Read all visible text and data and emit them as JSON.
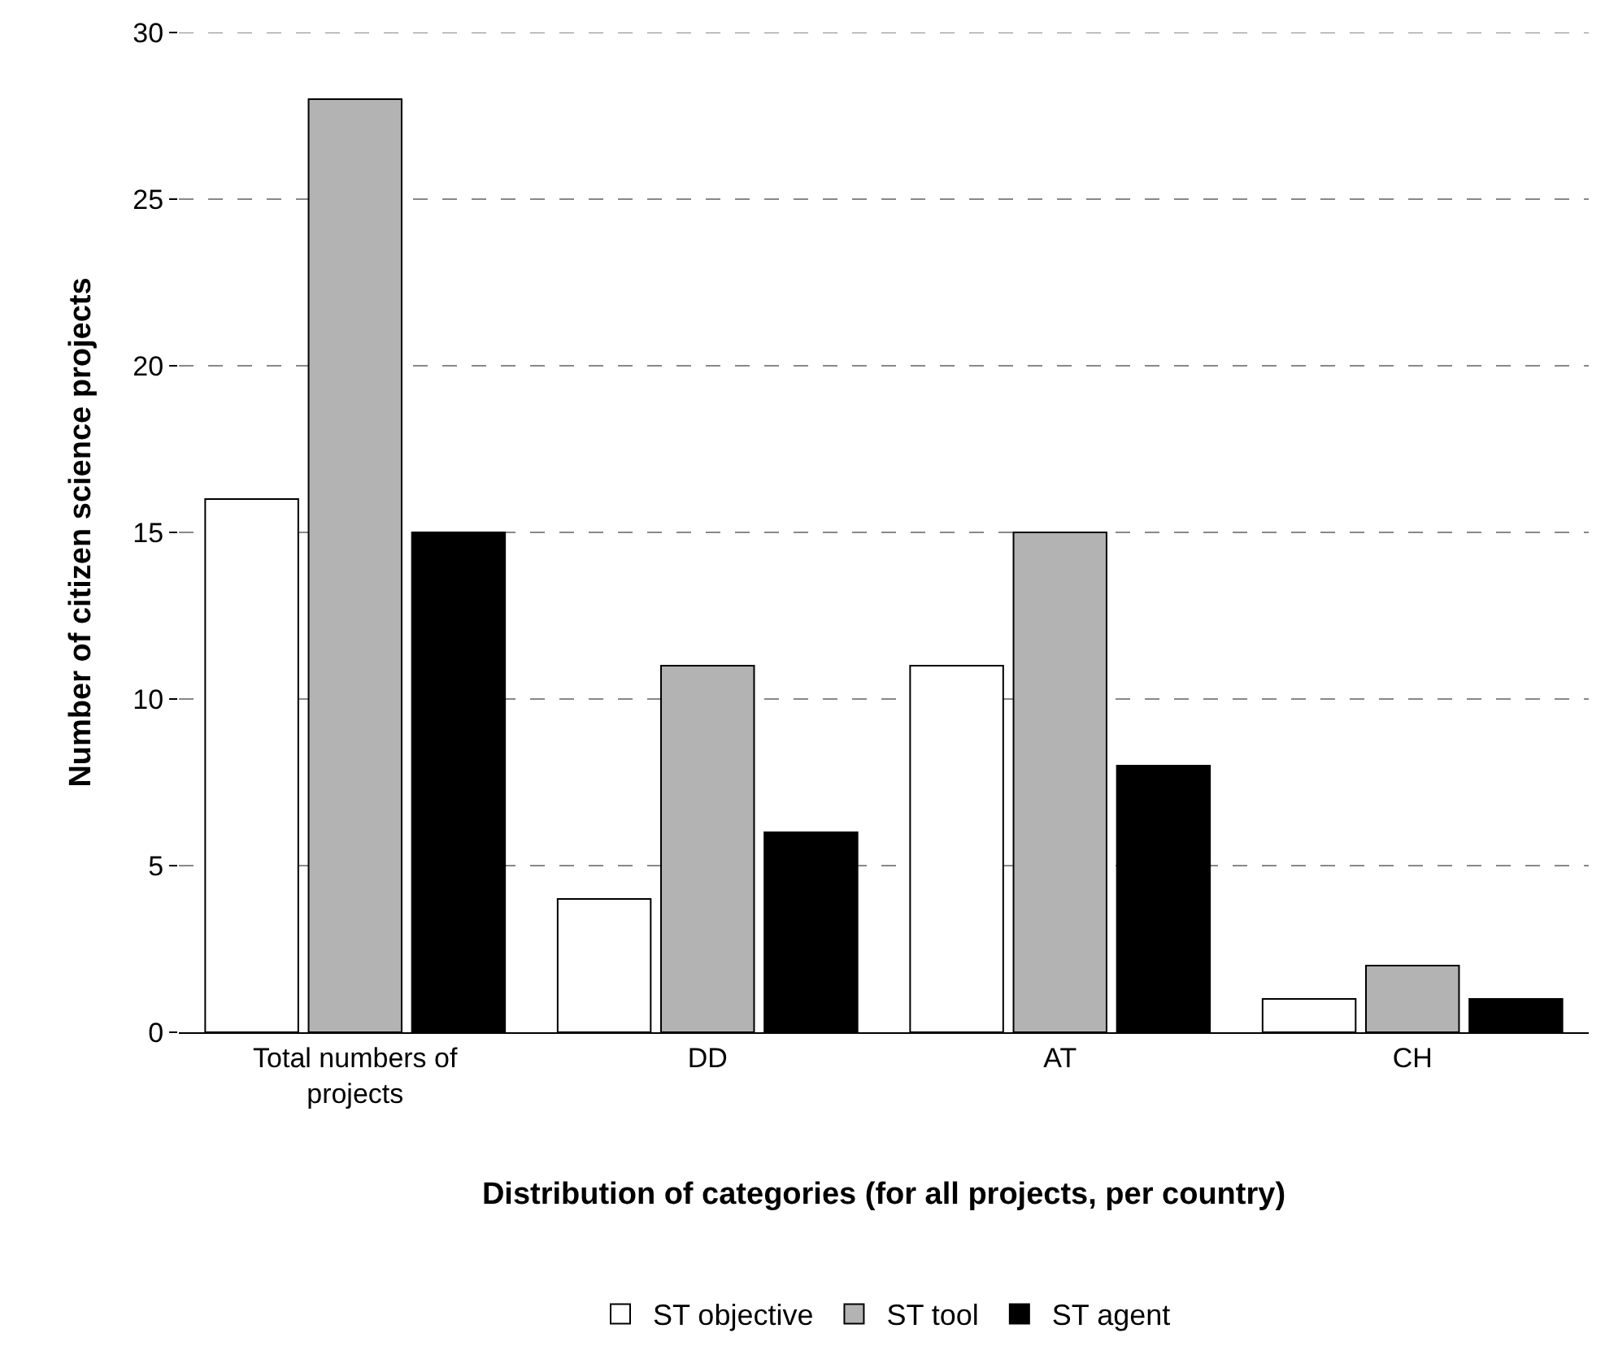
{
  "chart_data": {
    "type": "bar",
    "xlabel": "Distribution of categories (for all projects, per country)",
    "ylabel": "Number of citizen science projects",
    "categories": [
      "Total numbers of projects",
      "DD",
      "AT",
      "CH"
    ],
    "series": [
      {
        "name": "ST objective",
        "color": "#ffffff",
        "values": [
          16,
          4,
          11,
          1
        ]
      },
      {
        "name": "ST tool",
        "color": "#b3b3b3",
        "values": [
          28,
          11,
          15,
          2
        ]
      },
      {
        "name": "ST agent",
        "color": "#000000",
        "values": [
          15,
          6,
          8,
          1
        ]
      }
    ],
    "ylim": [
      0,
      30
    ],
    "yticks": [
      0,
      5,
      10,
      15,
      20,
      25,
      30
    ],
    "grid": "y",
    "legend": "bottom"
  }
}
